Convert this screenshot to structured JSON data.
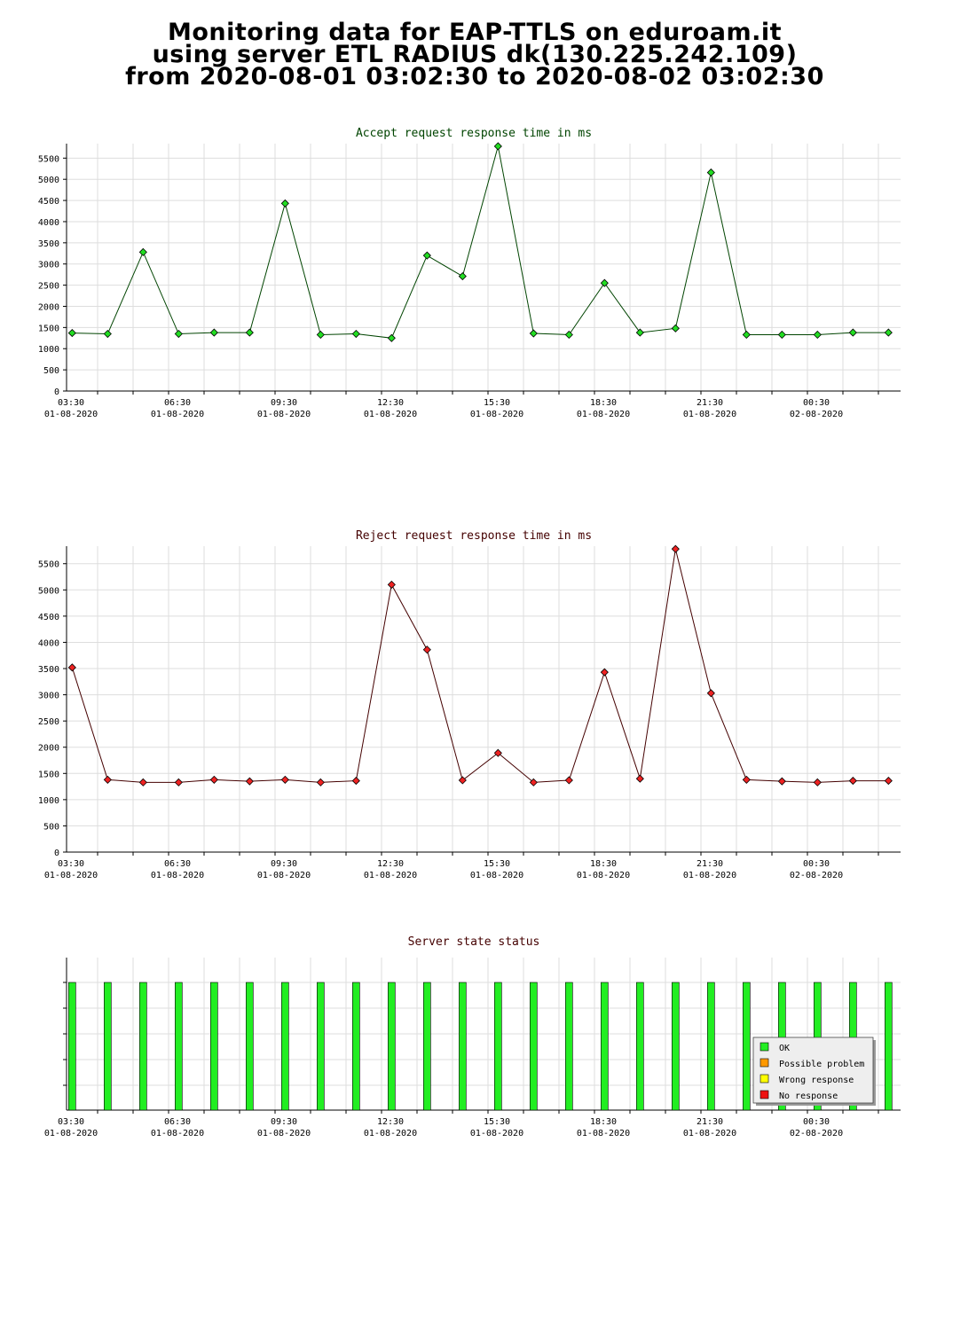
{
  "header": {
    "line1": "Monitoring data for EAP-TTLS on eduroam.it",
    "line2": "using server ETL RADIUS dk(130.225.242.109)",
    "line3": "from 2020-08-01 03:02:30 to 2020-08-02 03:02:30"
  },
  "colors": {
    "accept_marker": "#22dd22",
    "accept_line": "#004400",
    "accept_title": "#004400",
    "reject_marker": "#ee2222",
    "reject_line": "#440000",
    "reject_title": "#440000",
    "status_title": "#440000",
    "ok": "#22ee22",
    "possible_problem": "#ff9900",
    "wrong_response": "#ffff00",
    "no_response": "#ee1111",
    "grid": "#dddddd"
  },
  "chart_data": [
    {
      "type": "line",
      "title": "Accept request response time in ms",
      "xlabel": "",
      "ylabel": "",
      "ylim": [
        0,
        5800
      ],
      "y_ticks": [
        0,
        500,
        1000,
        1500,
        2000,
        2500,
        3000,
        3500,
        4000,
        4500,
        5000,
        5500
      ],
      "x_ticks": [
        {
          "time": "03:30",
          "date": "01-08-2020"
        },
        {
          "time": "06:30",
          "date": "01-08-2020"
        },
        {
          "time": "09:30",
          "date": "01-08-2020"
        },
        {
          "time": "12:30",
          "date": "01-08-2020"
        },
        {
          "time": "15:30",
          "date": "01-08-2020"
        },
        {
          "time": "18:30",
          "date": "01-08-2020"
        },
        {
          "time": "21:30",
          "date": "01-08-2020"
        },
        {
          "time": "00:30",
          "date": "02-08-2020"
        }
      ],
      "grid": true,
      "x": [
        "2020-08-01 03:32",
        "2020-08-01 04:32",
        "2020-08-01 05:32",
        "2020-08-01 06:32",
        "2020-08-01 07:32",
        "2020-08-01 08:32",
        "2020-08-01 09:32",
        "2020-08-01 10:32",
        "2020-08-01 11:32",
        "2020-08-01 12:32",
        "2020-08-01 13:32",
        "2020-08-01 14:32",
        "2020-08-01 15:32",
        "2020-08-01 16:32",
        "2020-08-01 17:32",
        "2020-08-01 18:32",
        "2020-08-01 19:32",
        "2020-08-01 20:32",
        "2020-08-01 21:32",
        "2020-08-01 22:32",
        "2020-08-01 23:32",
        "2020-08-02 00:32",
        "2020-08-02 01:32",
        "2020-08-02 02:32"
      ],
      "series": [
        {
          "values": [
            1370,
            1350,
            3280,
            1350,
            1380,
            1380,
            4430,
            1330,
            1350,
            1250,
            3200,
            2710,
            5780,
            1360,
            1330,
            2550,
            1380,
            1480,
            5160,
            1330,
            1330,
            1330,
            1380,
            1380
          ]
        }
      ]
    },
    {
      "type": "line",
      "title": "Reject request response time in ms",
      "xlabel": "",
      "ylabel": "",
      "ylim": [
        0,
        5800
      ],
      "y_ticks": [
        0,
        500,
        1000,
        1500,
        2000,
        2500,
        3000,
        3500,
        4000,
        4500,
        5000,
        5500
      ],
      "x_ticks": [
        {
          "time": "03:30",
          "date": "01-08-2020"
        },
        {
          "time": "06:30",
          "date": "01-08-2020"
        },
        {
          "time": "09:30",
          "date": "01-08-2020"
        },
        {
          "time": "12:30",
          "date": "01-08-2020"
        },
        {
          "time": "15:30",
          "date": "01-08-2020"
        },
        {
          "time": "18:30",
          "date": "01-08-2020"
        },
        {
          "time": "21:30",
          "date": "01-08-2020"
        },
        {
          "time": "00:30",
          "date": "02-08-2020"
        }
      ],
      "grid": true,
      "x": [
        "2020-08-01 03:32",
        "2020-08-01 04:32",
        "2020-08-01 05:32",
        "2020-08-01 06:32",
        "2020-08-01 07:32",
        "2020-08-01 08:32",
        "2020-08-01 09:32",
        "2020-08-01 10:32",
        "2020-08-01 11:32",
        "2020-08-01 12:32",
        "2020-08-01 13:32",
        "2020-08-01 14:32",
        "2020-08-01 15:32",
        "2020-08-01 16:32",
        "2020-08-01 17:32",
        "2020-08-01 18:32",
        "2020-08-01 19:32",
        "2020-08-01 20:32",
        "2020-08-01 21:32",
        "2020-08-01 22:32",
        "2020-08-01 23:32",
        "2020-08-02 00:32",
        "2020-08-02 01:32",
        "2020-08-02 02:32"
      ],
      "series": [
        {
          "values": [
            3520,
            1380,
            1330,
            1330,
            1380,
            1350,
            1380,
            1330,
            1360,
            5100,
            3860,
            1370,
            1890,
            1330,
            1370,
            3430,
            1400,
            5780,
            3030,
            1380,
            1350,
            1330,
            1360,
            1360
          ]
        }
      ]
    },
    {
      "type": "bar",
      "title": "Server state status",
      "xlabel": "",
      "ylabel": "",
      "x_ticks": [
        {
          "time": "03:30",
          "date": "01-08-2020"
        },
        {
          "time": "06:30",
          "date": "01-08-2020"
        },
        {
          "time": "09:30",
          "date": "01-08-2020"
        },
        {
          "time": "12:30",
          "date": "01-08-2020"
        },
        {
          "time": "15:30",
          "date": "01-08-2020"
        },
        {
          "time": "18:30",
          "date": "01-08-2020"
        },
        {
          "time": "21:30",
          "date": "01-08-2020"
        },
        {
          "time": "00:30",
          "date": "02-08-2020"
        }
      ],
      "grid": true,
      "legend_position": "bottom-right",
      "legend": [
        "OK",
        "Possible problem",
        "Wrong response",
        "No response"
      ],
      "x": [
        "2020-08-01 03:32",
        "2020-08-01 04:32",
        "2020-08-01 05:32",
        "2020-08-01 06:32",
        "2020-08-01 07:32",
        "2020-08-01 08:32",
        "2020-08-01 09:32",
        "2020-08-01 10:32",
        "2020-08-01 11:32",
        "2020-08-01 12:32",
        "2020-08-01 13:32",
        "2020-08-01 14:32",
        "2020-08-01 15:32",
        "2020-08-01 16:32",
        "2020-08-01 17:32",
        "2020-08-01 18:32",
        "2020-08-01 19:32",
        "2020-08-01 20:32",
        "2020-08-01 21:32",
        "2020-08-01 22:32",
        "2020-08-01 23:32",
        "2020-08-02 00:32",
        "2020-08-02 01:32",
        "2020-08-02 02:32"
      ],
      "values": [
        "OK",
        "OK",
        "OK",
        "OK",
        "OK",
        "OK",
        "OK",
        "OK",
        "OK",
        "OK",
        "OK",
        "OK",
        "OK",
        "OK",
        "OK",
        "OK",
        "OK",
        "OK",
        "OK",
        "OK",
        "OK",
        "OK",
        "OK",
        "OK"
      ]
    }
  ]
}
